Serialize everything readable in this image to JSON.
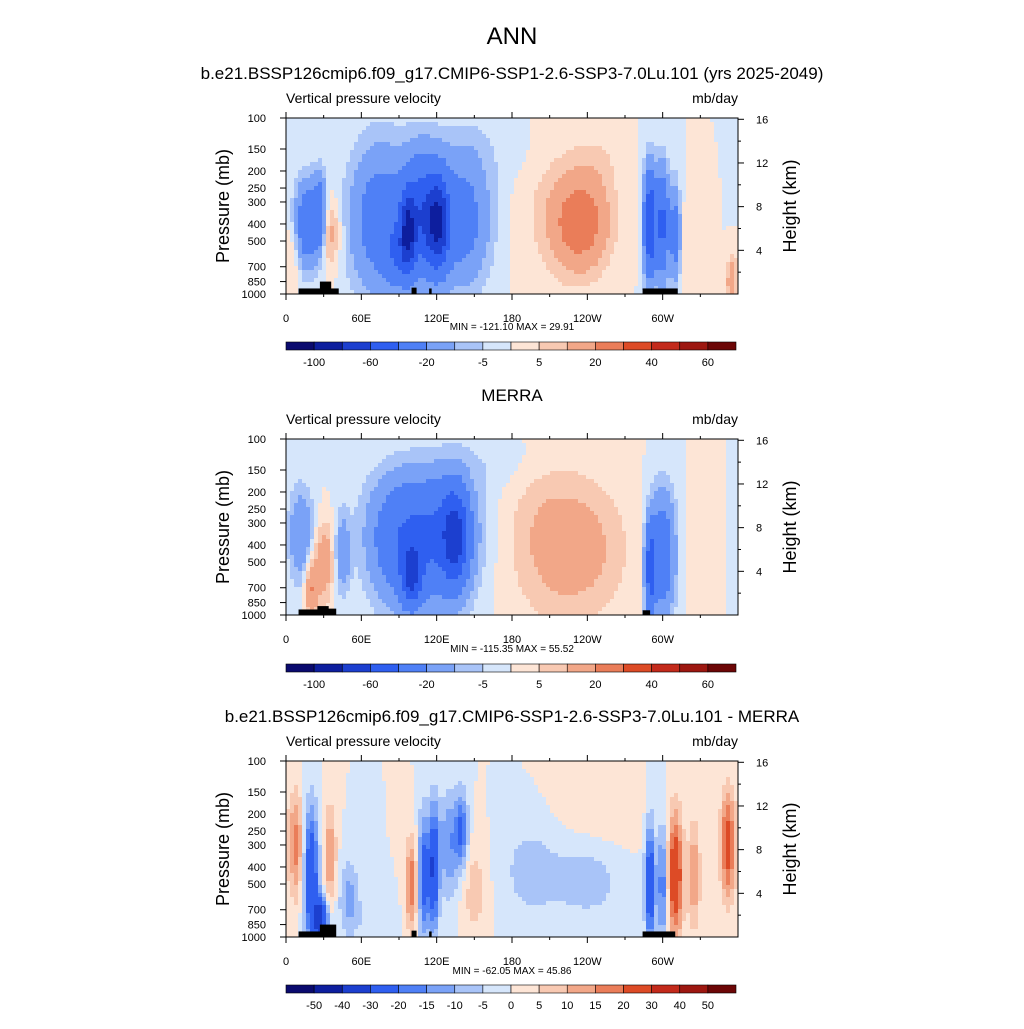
{
  "figure": {
    "title": "ANN"
  },
  "scale": {
    "colors": [
      "#0a0a6e",
      "#0d1e9e",
      "#1c3fcf",
      "#2f5ff0",
      "#4f80f6",
      "#7aa2f7",
      "#a9c4f8",
      "#d6e6fb",
      "#fde5d6",
      "#f8c9b2",
      "#f2a788",
      "#ea7d59",
      "#dd4b26",
      "#c32a1b",
      "#9d1710",
      "#6c0606"
    ],
    "labels_main": [
      "-100",
      "-60",
      "-20",
      "-5",
      "5",
      "20",
      "40",
      "60"
    ],
    "labels_diff": [
      "-50",
      "-40",
      "-30",
      "-20",
      "-15",
      "-10",
      "-5",
      "0",
      "5",
      "10",
      "15",
      "20",
      "30",
      "40",
      "50"
    ]
  },
  "chart_data": [
    {
      "type": "heatmap",
      "title": "b.e21.BSSP126cmip6.f09_g17.CMIP6-SSP1-2.6-SSP3-7.0Lu.101 (yrs 2025-2049)",
      "subtitle_left": "Vertical pressure velocity",
      "subtitle_right": "mb/day",
      "ylabel": "Pressure (mb)",
      "y2label": "Height (km)",
      "xticks": [
        "0",
        "60E",
        "120E",
        "180",
        "120W",
        "60W"
      ],
      "yticks": [
        "100",
        "150",
        "200",
        "250",
        "300",
        "400",
        "500",
        "700",
        "850",
        "1000"
      ],
      "y2ticks": [
        "16",
        "12",
        "8",
        "4"
      ],
      "min_max": "MIN = -121.10  MAX =  29.91",
      "xlim": [
        0,
        360
      ],
      "ylim": [
        1000,
        100
      ],
      "colorbar": "main",
      "blobs": [
        {
          "lon": 35,
          "p": 450,
          "dlon": 8,
          "dlog": 0.45,
          "v": 15
        },
        {
          "lon": 17,
          "p": 400,
          "dlon": 10,
          "dlog": 0.55,
          "v": -35
        },
        {
          "lon": 27,
          "p": 350,
          "dlon": 5,
          "dlog": 0.5,
          "v": -28
        },
        {
          "lon": 5,
          "p": 600,
          "dlon": 6,
          "dlog": 0.4,
          "v": 8
        },
        {
          "lon": 75,
          "p": 380,
          "dlon": 24,
          "dlog": 0.95,
          "v": -30
        },
        {
          "lon": 108,
          "p": 350,
          "dlon": 14,
          "dlog": 0.75,
          "v": -45
        },
        {
          "lon": 97,
          "p": 450,
          "dlon": 6,
          "dlog": 0.5,
          "v": -55
        },
        {
          "lon": 121,
          "p": 400,
          "dlon": 9,
          "dlog": 0.6,
          "v": -60
        },
        {
          "lon": 140,
          "p": 380,
          "dlon": 22,
          "dlog": 0.85,
          "v": -28
        },
        {
          "lon": 88,
          "p": 600,
          "dlon": 10,
          "dlog": 0.4,
          "v": -22
        },
        {
          "lon": 235,
          "p": 400,
          "dlon": 22,
          "dlog": 0.6,
          "v": 26
        },
        {
          "lon": 215,
          "p": 300,
          "dlon": 30,
          "dlog": 1.0,
          "v": 6
        },
        {
          "lon": 250,
          "p": 180,
          "dlon": 20,
          "dlog": 0.5,
          "v": 4
        },
        {
          "lon": 290,
          "p": 400,
          "dlon": 5,
          "dlog": 0.7,
          "v": -60
        },
        {
          "lon": 300,
          "p": 400,
          "dlon": 5,
          "dlog": 0.7,
          "v": -45
        },
        {
          "lon": 310,
          "p": 450,
          "dlon": 4,
          "dlog": 0.6,
          "v": -30
        },
        {
          "lon": 325,
          "p": 500,
          "dlon": 8,
          "dlog": 0.6,
          "v": 5
        },
        {
          "lon": 355,
          "p": 850,
          "dlon": 4,
          "dlog": 0.3,
          "v": 18
        },
        {
          "lon": 160,
          "p": 150,
          "dlon": 60,
          "dlog": 0.5,
          "v": -3
        }
      ],
      "topo": [
        {
          "lon1": 10,
          "lon2": 28,
          "p": 930
        },
        {
          "lon1": 27,
          "lon2": 36,
          "p": 850
        },
        {
          "lon1": 35,
          "lon2": 42,
          "p": 930
        },
        {
          "lon1": 100,
          "lon2": 104,
          "p": 920
        },
        {
          "lon1": 114,
          "lon2": 116,
          "p": 930
        },
        {
          "lon1": 284,
          "lon2": 312,
          "p": 930
        }
      ]
    },
    {
      "type": "heatmap",
      "title": "MERRA",
      "subtitle_left": "Vertical pressure velocity",
      "subtitle_right": "mb/day",
      "ylabel": "Pressure (mb)",
      "y2label": "Height (km)",
      "xticks": [
        "0",
        "60E",
        "120E",
        "180",
        "120W",
        "60W"
      ],
      "yticks": [
        "100",
        "150",
        "200",
        "250",
        "300",
        "400",
        "500",
        "700",
        "850",
        "1000"
      ],
      "y2ticks": [
        "16",
        "12",
        "8",
        "4"
      ],
      "min_max": "MIN = -115.35  MAX =  55.52",
      "xlim": [
        0,
        360
      ],
      "ylim": [
        1000,
        100
      ],
      "colorbar": "main",
      "blobs": [
        {
          "lon": 30,
          "p": 500,
          "dlon": 8,
          "dlog": 0.5,
          "v": 18
        },
        {
          "lon": 20,
          "p": 700,
          "dlon": 5,
          "dlog": 0.4,
          "v": 20
        },
        {
          "lon": 12,
          "p": 350,
          "dlon": 10,
          "dlog": 0.6,
          "v": -20
        },
        {
          "lon": 45,
          "p": 450,
          "dlon": 6,
          "dlog": 0.5,
          "v": -18
        },
        {
          "lon": 90,
          "p": 400,
          "dlon": 25,
          "dlog": 0.8,
          "v": -30
        },
        {
          "lon": 125,
          "p": 400,
          "dlon": 25,
          "dlog": 0.8,
          "v": -32
        },
        {
          "lon": 135,
          "p": 350,
          "dlon": 10,
          "dlog": 0.6,
          "v": -45
        },
        {
          "lon": 100,
          "p": 600,
          "dlon": 8,
          "dlog": 0.4,
          "v": -45
        },
        {
          "lon": 110,
          "p": 250,
          "dlon": 40,
          "dlog": 0.6,
          "v": -10
        },
        {
          "lon": 232,
          "p": 420,
          "dlon": 38,
          "dlog": 0.9,
          "v": 14
        },
        {
          "lon": 200,
          "p": 300,
          "dlon": 30,
          "dlog": 1.2,
          "v": 5
        },
        {
          "lon": 300,
          "p": 450,
          "dlon": 10,
          "dlog": 0.8,
          "v": -35
        },
        {
          "lon": 290,
          "p": 550,
          "dlon": 4,
          "dlog": 0.6,
          "v": -45
        },
        {
          "lon": 330,
          "p": 400,
          "dlon": 10,
          "dlog": 0.8,
          "v": 4
        },
        {
          "lon": 170,
          "p": 130,
          "dlon": 40,
          "dlog": 0.4,
          "v": -4
        }
      ],
      "topo": [
        {
          "lon1": 10,
          "lon2": 26,
          "p": 930
        },
        {
          "lon1": 25,
          "lon2": 34,
          "p": 890
        },
        {
          "lon1": 33,
          "lon2": 40,
          "p": 920
        },
        {
          "lon1": 284,
          "lon2": 290,
          "p": 940
        }
      ]
    },
    {
      "type": "heatmap",
      "title": "b.e21.BSSP126cmip6.f09_g17.CMIP6-SSP1-2.6-SSP3-7.0Lu.101 - MERRA",
      "subtitle_left": "Vertical pressure velocity",
      "subtitle_right": "mb/day",
      "ylabel": "Pressure (mb)",
      "y2label": "Height (km)",
      "xticks": [
        "0",
        "60E",
        "120E",
        "180",
        "120W",
        "60W"
      ],
      "yticks": [
        "100",
        "150",
        "200",
        "250",
        "300",
        "400",
        "500",
        "700",
        "850",
        "1000"
      ],
      "y2ticks": [
        "16",
        "12",
        "8",
        "4"
      ],
      "min_max": "MIN = -62.05  MAX =  45.86",
      "xlim": [
        0,
        360
      ],
      "ylim": [
        1000,
        100
      ],
      "colorbar": "diff",
      "blobs": [
        {
          "lon": 8,
          "p": 300,
          "dlon": 6,
          "dlog": 0.7,
          "v": 18
        },
        {
          "lon": 20,
          "p": 450,
          "dlon": 6,
          "dlog": 0.9,
          "v": -30
        },
        {
          "lon": 35,
          "p": 350,
          "dlon": 5,
          "dlog": 0.7,
          "v": 15
        },
        {
          "lon": 28,
          "p": 800,
          "dlon": 6,
          "dlog": 0.3,
          "v": -35
        },
        {
          "lon": 50,
          "p": 600,
          "dlon": 8,
          "dlog": 0.5,
          "v": -12
        },
        {
          "lon": 100,
          "p": 500,
          "dlon": 5,
          "dlog": 0.6,
          "v": 20
        },
        {
          "lon": 110,
          "p": 450,
          "dlon": 5,
          "dlog": 0.8,
          "v": -25
        },
        {
          "lon": 118,
          "p": 400,
          "dlon": 4,
          "dlog": 0.8,
          "v": -30
        },
        {
          "lon": 130,
          "p": 300,
          "dlon": 8,
          "dlog": 0.7,
          "v": -15
        },
        {
          "lon": 140,
          "p": 250,
          "dlon": 5,
          "dlog": 0.5,
          "v": -20
        },
        {
          "lon": 150,
          "p": 550,
          "dlon": 10,
          "dlog": 0.6,
          "v": 8
        },
        {
          "lon": 195,
          "p": 420,
          "dlon": 22,
          "dlog": 0.6,
          "v": -8
        },
        {
          "lon": 240,
          "p": 480,
          "dlon": 28,
          "dlog": 0.5,
          "v": -8
        },
        {
          "lon": 290,
          "p": 500,
          "dlon": 4,
          "dlog": 0.8,
          "v": -30
        },
        {
          "lon": 300,
          "p": 500,
          "dlon": 4,
          "dlog": 0.8,
          "v": -20
        },
        {
          "lon": 310,
          "p": 450,
          "dlon": 6,
          "dlog": 0.8,
          "v": 30
        },
        {
          "lon": 325,
          "p": 450,
          "dlon": 5,
          "dlog": 0.7,
          "v": 15
        },
        {
          "lon": 352,
          "p": 300,
          "dlon": 6,
          "dlog": 0.7,
          "v": 25
        },
        {
          "lon": 255,
          "p": 200,
          "dlon": 40,
          "dlog": 0.5,
          "v": 3
        },
        {
          "lon": 70,
          "p": 800,
          "dlon": 15,
          "dlog": 0.3,
          "v": -5
        }
      ],
      "topo": [
        {
          "lon1": 10,
          "lon2": 28,
          "p": 930
        },
        {
          "lon1": 27,
          "lon2": 40,
          "p": 850
        },
        {
          "lon1": 100,
          "lon2": 104,
          "p": 920
        },
        {
          "lon1": 114,
          "lon2": 116,
          "p": 930
        },
        {
          "lon1": 284,
          "lon2": 310,
          "p": 930
        }
      ]
    }
  ]
}
